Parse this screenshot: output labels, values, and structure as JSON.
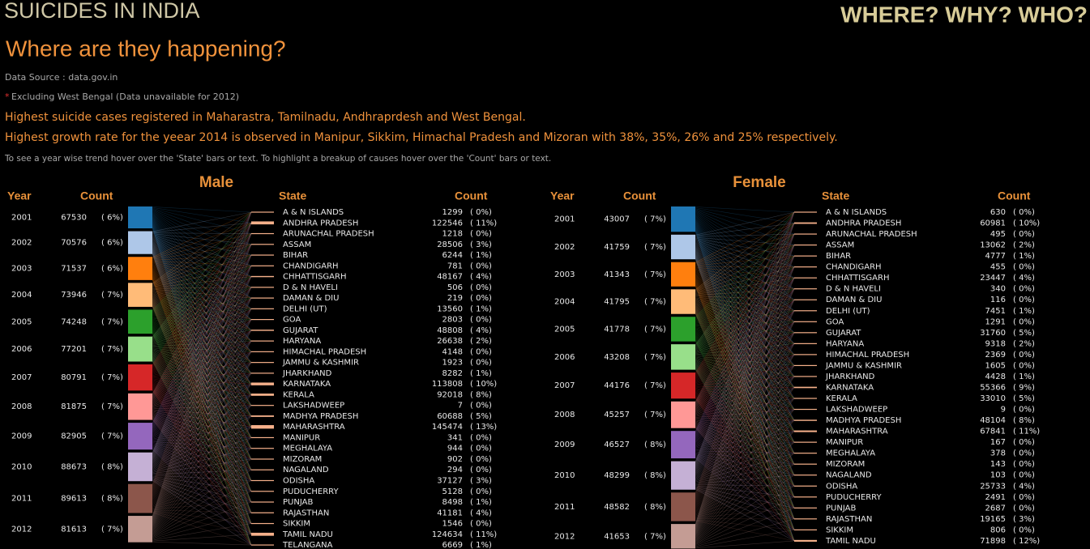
{
  "header": {
    "title": "SUICIDES IN INDIA",
    "tagline": "WHERE? WHY? WHO?",
    "subtitle": "Where are they happening?",
    "source": "Data Source : data.gov.in",
    "note_marker": "*",
    "note": "Excluding West Bengal (Data unavailable for 2012)",
    "insight_1": "Highest suicide cases registered in Maharastra, Tamilnadu, Andhraprdesh and West Bengal.",
    "insight_2": "Highest growth rate for the yeear 2014 is observed in Manipur, Sikkim, Himachal Pradesh and Mizoran with 38%, 35%, 26% and 25% respectively.",
    "instruction": "To see a year wise trend hover over the 'State' bars or text. To highlight a breakup of causes hover over the 'Count' bars or text."
  },
  "chart_data": [
    {
      "type": "parallel-sets",
      "title": "Male",
      "year_label": "Year",
      "count_label": "Count",
      "state_label": "State",
      "state_count_label": "Count",
      "years": [
        "2001",
        "2002",
        "2003",
        "2004",
        "2005",
        "2006",
        "2007",
        "2008",
        "2009",
        "2010",
        "2011",
        "2012"
      ],
      "year_counts": [
        67530,
        70576,
        71537,
        73946,
        74248,
        77201,
        80791,
        81875,
        82905,
        88673,
        89613,
        81613
      ],
      "year_share_labels": [
        "( 6%)",
        "( 6%)",
        "( 6%)",
        "( 7%)",
        "( 7%)",
        "( 7%)",
        "( 7%)",
        "( 7%)",
        "( 7%)",
        "( 8%)",
        "( 8%)",
        "( 7%)"
      ],
      "colors": [
        "#1f77b4",
        "#aec7e8",
        "#ff7f0e",
        "#ffbb78",
        "#2ca02c",
        "#98df8a",
        "#d62728",
        "#ff9896",
        "#9467bd",
        "#c5b0d5",
        "#8c564b",
        "#c49c94"
      ],
      "states": [
        "A & N ISLANDS",
        "ANDHRA PRADESH",
        "ARUNACHAL PRADESH",
        "ASSAM",
        "BIHAR",
        "CHANDIGARH",
        "CHHATTISGARH",
        "D & N HAVELI",
        "DAMAN & DIU",
        "DELHI (UT)",
        "GOA",
        "GUJARAT",
        "HARYANA",
        "HIMACHAL PRADESH",
        "JAMMU & KASHMIR",
        "JHARKHAND",
        "KARNATAKA",
        "KERALA",
        "LAKSHADWEEP",
        "MADHYA PRADESH",
        "MAHARASHTRA",
        "MANIPUR",
        "MEGHALAYA",
        "MIZORAM",
        "NAGALAND",
        "ODISHA",
        "PUDUCHERRY",
        "PUNJAB",
        "RAJASTHAN",
        "SIKKIM",
        "TAMIL NADU",
        "TELANGANA"
      ],
      "state_counts": [
        1299,
        122546,
        1218,
        28506,
        6244,
        781,
        48167,
        506,
        219,
        13560,
        2803,
        48808,
        26638,
        4148,
        1923,
        8282,
        113808,
        92018,
        7,
        60688,
        145474,
        341,
        944,
        902,
        294,
        37127,
        5128,
        8498,
        41181,
        1546,
        124634,
        6669
      ],
      "state_share_labels": [
        "( 0%)",
        "( 11%)",
        "( 0%)",
        "( 3%)",
        "( 1%)",
        "( 0%)",
        "( 4%)",
        "( 0%)",
        "( 0%)",
        "( 1%)",
        "( 0%)",
        "( 4%)",
        "( 2%)",
        "( 0%)",
        "( 0%)",
        "( 1%)",
        "( 10%)",
        "( 8%)",
        "( 0%)",
        "( 5%)",
        "( 13%)",
        "( 0%)",
        "( 0%)",
        "( 0%)",
        "( 0%)",
        "( 3%)",
        "( 0%)",
        "( 1%)",
        "( 4%)",
        "( 0%)",
        "( 11%)",
        "( 1%)"
      ]
    },
    {
      "type": "parallel-sets",
      "title": "Female",
      "year_label": "Year",
      "count_label": "Count",
      "state_label": "State",
      "state_count_label": "Count",
      "years": [
        "2001",
        "2002",
        "2003",
        "2004",
        "2005",
        "2006",
        "2007",
        "2008",
        "2009",
        "2010",
        "2011",
        "2012"
      ],
      "year_counts": [
        43007,
        41759,
        41343,
        41795,
        41778,
        43208,
        44176,
        45257,
        46527,
        48299,
        48582,
        41653
      ],
      "year_share_labels": [
        "( 7%)",
        "( 7%)",
        "( 7%)",
        "( 7%)",
        "( 7%)",
        "( 7%)",
        "( 7%)",
        "( 7%)",
        "( 8%)",
        "( 8%)",
        "( 8%)",
        "( 7%)"
      ],
      "colors": [
        "#1f77b4",
        "#aec7e8",
        "#ff7f0e",
        "#ffbb78",
        "#2ca02c",
        "#98df8a",
        "#d62728",
        "#ff9896",
        "#9467bd",
        "#c5b0d5",
        "#8c564b",
        "#c49c94"
      ],
      "states": [
        "A & N ISLANDS",
        "ANDHRA PRADESH",
        "ARUNACHAL PRADESH",
        "ASSAM",
        "BIHAR",
        "CHANDIGARH",
        "CHHATTISGARH",
        "D & N HAVELI",
        "DAMAN & DIU",
        "DELHI (UT)",
        "GOA",
        "GUJARAT",
        "HARYANA",
        "HIMACHAL PRADESH",
        "JAMMU & KASHMIR",
        "JHARKHAND",
        "KARNATAKA",
        "KERALA",
        "LAKSHADWEEP",
        "MADHYA PRADESH",
        "MAHARASHTRA",
        "MANIPUR",
        "MEGHALAYA",
        "MIZORAM",
        "NAGALAND",
        "ODISHA",
        "PUDUCHERRY",
        "PUNJAB",
        "RAJASTHAN",
        "SIKKIM",
        "TAMIL NADU"
      ],
      "state_counts": [
        630,
        60981,
        495,
        13062,
        4777,
        455,
        23447,
        340,
        116,
        7451,
        1291,
        31760,
        9318,
        2369,
        1605,
        4428,
        55366,
        33010,
        9,
        48104,
        67841,
        167,
        378,
        143,
        103,
        25733,
        2491,
        2687,
        19165,
        806,
        71898
      ],
      "state_share_labels": [
        "( 0%)",
        "( 10%)",
        "( 0%)",
        "( 2%)",
        "( 1%)",
        "( 0%)",
        "( 4%)",
        "( 0%)",
        "( 0%)",
        "( 1%)",
        "( 0%)",
        "( 5%)",
        "( 2%)",
        "( 0%)",
        "( 0%)",
        "( 1%)",
        "( 9%)",
        "( 5%)",
        "( 0%)",
        "( 8%)",
        "( 11%)",
        "( 0%)",
        "( 0%)",
        "( 0%)",
        "( 0%)",
        "( 4%)",
        "( 0%)",
        "( 0%)",
        "( 3%)",
        "( 0%)",
        "( 12%)"
      ]
    }
  ]
}
